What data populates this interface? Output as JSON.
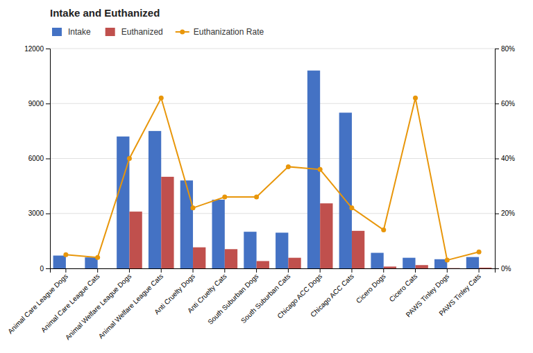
{
  "chart_data": {
    "type": "bar",
    "title": "Intake and Euthanized",
    "categories": [
      "Animal Care League Dogs",
      "Animal Care League Cats",
      "Animal Welfare League Dogs",
      "Animal Welfare League Cats",
      "Anti Cruelty Dogs",
      "Anti Cruelty Cats",
      "South Suburban Dogs",
      "South Suburban Cats",
      "Chicago ACC Dogs",
      "Chicago ACC Cats",
      "Cicero Dogs",
      "Cicero Cats",
      "PAWS Tinley Dogs",
      "PAWS Tinley Cats"
    ],
    "series": [
      {
        "name": "Intake",
        "type": "bar",
        "color": "#4472C4",
        "values": [
          700,
          600,
          7200,
          7500,
          4800,
          3750,
          2000,
          1950,
          10800,
          8500,
          850,
          580,
          500,
          620
        ]
      },
      {
        "name": "Euthanized",
        "type": "bar",
        "color": "#C0504D",
        "values": [
          0,
          0,
          3100,
          5000,
          1150,
          1050,
          400,
          580,
          3550,
          2050,
          100,
          180,
          15,
          40
        ]
      },
      {
        "name": "Euthanization Rate",
        "type": "line",
        "axis": "y2",
        "marker": "circle",
        "color": "#E8960A",
        "values": [
          0.05,
          0.04,
          0.4,
          0.62,
          0.22,
          0.26,
          0.26,
          0.37,
          0.36,
          0.22,
          0.14,
          0.62,
          0.03,
          0.06
        ]
      }
    ],
    "ylim": [
      0,
      12000
    ],
    "yticks": [
      0,
      3000,
      6000,
      9000,
      12000
    ],
    "y2lim": [
      0,
      0.8
    ],
    "y2ticks": [
      {
        "value": 0.0,
        "label": "0%"
      },
      {
        "value": 0.2,
        "label": "20%"
      },
      {
        "value": 0.4,
        "label": "40%"
      },
      {
        "value": 0.6,
        "label": "60%"
      },
      {
        "value": 0.8,
        "label": "80%"
      }
    ],
    "grid": true,
    "legend": "upper left"
  }
}
